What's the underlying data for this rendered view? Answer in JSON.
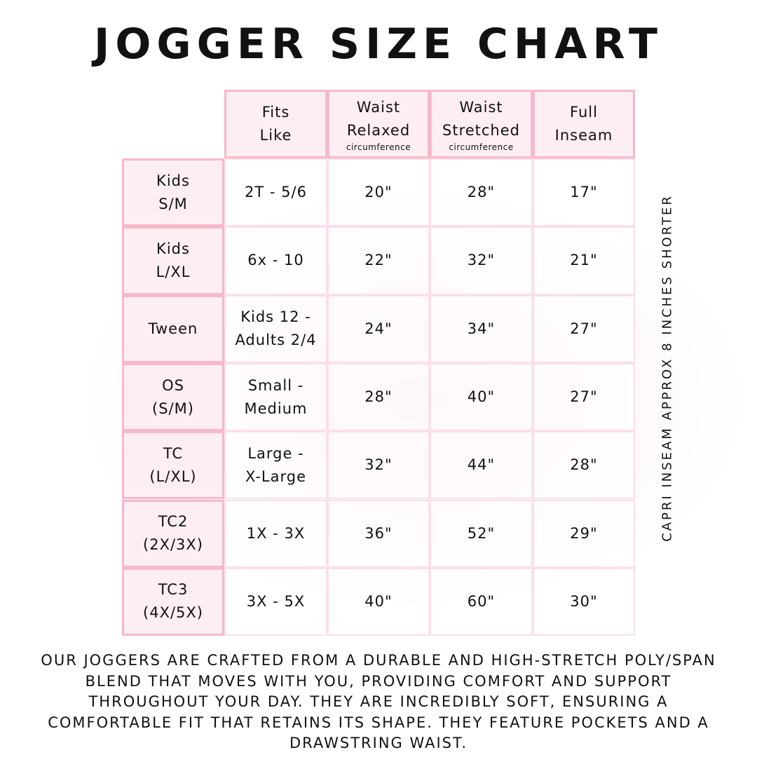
{
  "title": "JOGGER SIZE CHART",
  "colors": {
    "border": "#f6b9cb",
    "header_fill": "#fdeef3",
    "text": "#111111"
  },
  "table": {
    "headers": [
      {
        "line1": "Fits",
        "line2": "Like",
        "sub": ""
      },
      {
        "line1": "Waist",
        "line2": "Relaxed",
        "sub": "circumference"
      },
      {
        "line1": "Waist",
        "line2": "Stretched",
        "sub": "circumference"
      },
      {
        "line1": "Full",
        "line2": "Inseam",
        "sub": ""
      }
    ],
    "rows": [
      {
        "size1": "Kids",
        "size2": "S/M",
        "fits1": "2T - 5/6",
        "fits2": "",
        "relaxed": "20\"",
        "stretched": "28\"",
        "inseam": "17\""
      },
      {
        "size1": "Kids",
        "size2": "L/XL",
        "fits1": "6x - 10",
        "fits2": "",
        "relaxed": "22\"",
        "stretched": "32\"",
        "inseam": "21\""
      },
      {
        "size1": "Tween",
        "size2": "",
        "fits1": "Kids 12 -",
        "fits2": "Adults 2/4",
        "relaxed": "24\"",
        "stretched": "34\"",
        "inseam": "27\""
      },
      {
        "size1": "OS",
        "size2": "(S/M)",
        "fits1": "Small -",
        "fits2": "Medium",
        "relaxed": "28\"",
        "stretched": "40\"",
        "inseam": "27\""
      },
      {
        "size1": "TC",
        "size2": "(L/XL)",
        "fits1": "Large -",
        "fits2": "X-Large",
        "relaxed": "32\"",
        "stretched": "44\"",
        "inseam": "28\""
      },
      {
        "size1": "TC2",
        "size2": "(2X/3X)",
        "fits1": "1X - 3X",
        "fits2": "",
        "relaxed": "36\"",
        "stretched": "52\"",
        "inseam": "29\""
      },
      {
        "size1": "TC3",
        "size2": "(4X/5X)",
        "fits1": "3X - 5X",
        "fits2": "",
        "relaxed": "40\"",
        "stretched": "60\"",
        "inseam": "30\""
      }
    ]
  },
  "side_note": "CAPRI INSEAM APPROX 8 INCHES SHORTER",
  "description": "Our joggers are crafted from a durable and high-stretch poly/span blend that moves with you, providing comfort and support throughout your day. They are incredibly soft, ensuring a comfortable fit that retains its shape. They feature pockets and a drawstring waist."
}
